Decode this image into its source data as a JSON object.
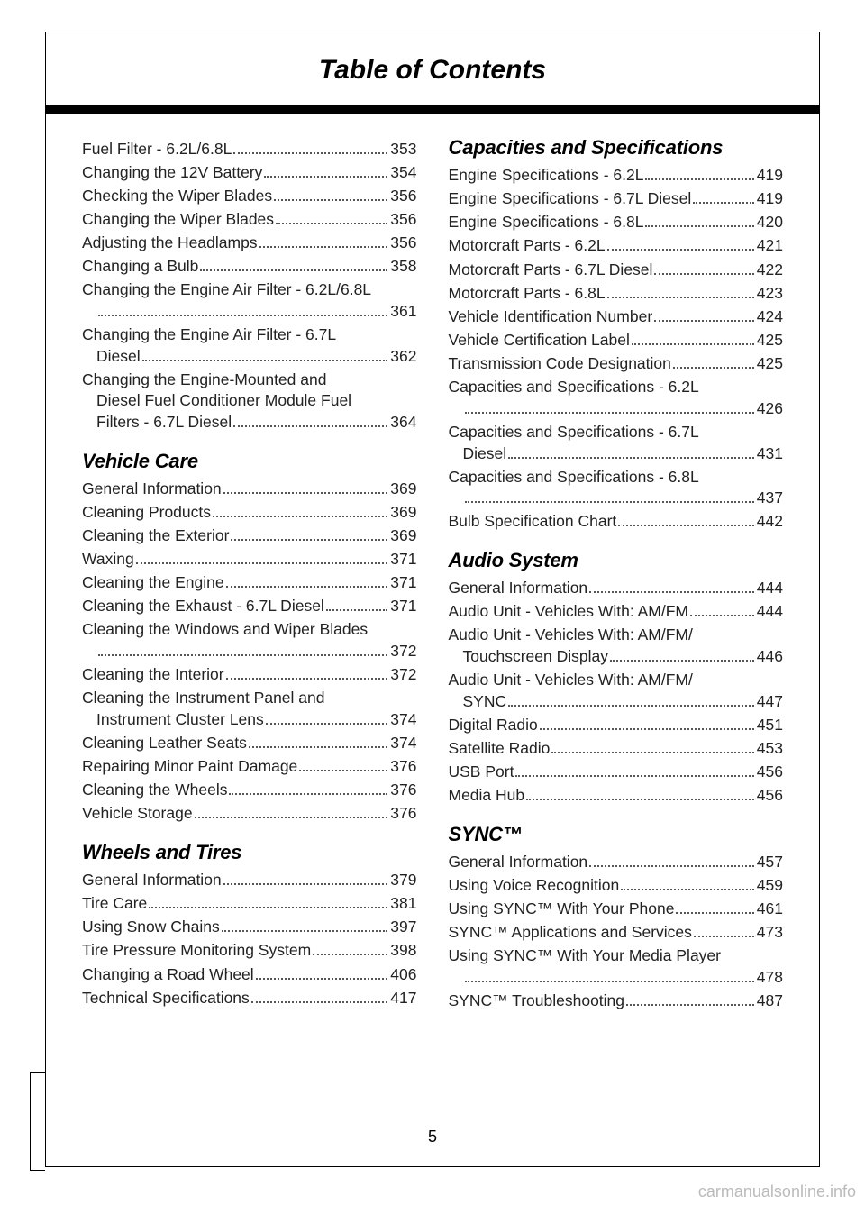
{
  "header": {
    "title": "Table of Contents"
  },
  "pageNumber": "5",
  "watermark": "carmanualsonline.info",
  "left": {
    "lead": [
      {
        "label": "Fuel Filter - 6.2L/6.8L",
        "page": "353"
      },
      {
        "label": "Changing the 12V Battery",
        "page": "354"
      },
      {
        "label": "Checking the Wiper Blades",
        "page": "356"
      },
      {
        "label": "Changing the Wiper Blades",
        "page": "356"
      },
      {
        "label": "Adjusting the Headlamps",
        "page": "356"
      },
      {
        "label": "Changing a Bulb",
        "page": "358"
      },
      {
        "label1": "Changing the Engine Air Filter - 6.2L/6.8L",
        "page": "361",
        "wrap": true
      },
      {
        "label1": "Changing the Engine Air Filter - 6.7L",
        "label2": "Diesel",
        "page": "362",
        "wrap": true
      },
      {
        "label1": "Changing the Engine-Mounted and",
        "label2": "Diesel Fuel Conditioner Module Fuel",
        "label3": "Filters - 6.7L Diesel",
        "page": "364",
        "wrap": true
      }
    ],
    "sections": [
      {
        "heading": "Vehicle Care",
        "items": [
          {
            "label": "General Information",
            "page": "369"
          },
          {
            "label": "Cleaning Products",
            "page": "369"
          },
          {
            "label": "Cleaning the Exterior",
            "page": "369"
          },
          {
            "label": "Waxing",
            "page": "371"
          },
          {
            "label": "Cleaning the Engine",
            "page": "371"
          },
          {
            "label": "Cleaning the Exhaust - 6.7L Diesel",
            "page": "371"
          },
          {
            "label1": "Cleaning the Windows and Wiper Blades",
            "page": "372",
            "wrap": true
          },
          {
            "label": "Cleaning the Interior",
            "page": "372"
          },
          {
            "label1": "Cleaning the Instrument Panel and",
            "label2": "Instrument Cluster Lens",
            "page": "374",
            "wrap": true
          },
          {
            "label": "Cleaning Leather Seats",
            "page": "374"
          },
          {
            "label": "Repairing Minor Paint Damage",
            "page": "376"
          },
          {
            "label": "Cleaning the Wheels",
            "page": "376"
          },
          {
            "label": "Vehicle Storage",
            "page": "376"
          }
        ]
      },
      {
        "heading": "Wheels and Tires",
        "items": [
          {
            "label": "General Information",
            "page": "379"
          },
          {
            "label": "Tire Care",
            "page": "381"
          },
          {
            "label": "Using Snow Chains",
            "page": "397"
          },
          {
            "label": "Tire Pressure Monitoring System",
            "page": "398"
          },
          {
            "label": "Changing a Road Wheel",
            "page": "406"
          },
          {
            "label": "Technical Specifications",
            "page": "417"
          }
        ]
      }
    ]
  },
  "right": {
    "sections": [
      {
        "heading": "Capacities and Specifications",
        "first": true,
        "items": [
          {
            "label": "Engine Specifications - 6.2L",
            "page": "419"
          },
          {
            "label": "Engine Specifications - 6.7L Diesel",
            "page": "419"
          },
          {
            "label": "Engine Specifications - 6.8L",
            "page": "420"
          },
          {
            "label": "Motorcraft Parts - 6.2L",
            "page": "421"
          },
          {
            "label": "Motorcraft Parts - 6.7L Diesel",
            "page": "422"
          },
          {
            "label": "Motorcraft Parts - 6.8L",
            "page": "423"
          },
          {
            "label": "Vehicle Identification Number",
            "page": "424"
          },
          {
            "label": "Vehicle Certification Label",
            "page": "425"
          },
          {
            "label": "Transmission Code Designation",
            "page": "425"
          },
          {
            "label1": "Capacities and Specifications - 6.2L",
            "page": "426",
            "wrap": true
          },
          {
            "label1": "Capacities and Specifications - 6.7L",
            "label2": "Diesel",
            "page": "431",
            "wrap": true
          },
          {
            "label1": "Capacities and Specifications - 6.8L",
            "page": "437",
            "wrap": true
          },
          {
            "label": "Bulb Specification Chart",
            "page": "442"
          }
        ]
      },
      {
        "heading": "Audio System",
        "items": [
          {
            "label": "General Information",
            "page": "444"
          },
          {
            "label": "Audio Unit - Vehicles With: AM/FM",
            "page": "444"
          },
          {
            "label1": "Audio Unit - Vehicles With: AM/FM/",
            "label2": "Touchscreen Display",
            "page": "446",
            "wrap": true
          },
          {
            "label1": "Audio Unit - Vehicles With: AM/FM/",
            "label2": "SYNC",
            "page": "447",
            "wrap": true
          },
          {
            "label": "Digital Radio",
            "page": "451"
          },
          {
            "label": "Satellite Radio",
            "page": "453"
          },
          {
            "label": "USB Port",
            "page": "456"
          },
          {
            "label": "Media Hub",
            "page": "456"
          }
        ]
      },
      {
        "heading": "SYNC™",
        "items": [
          {
            "label": "General Information",
            "page": "457"
          },
          {
            "label": "Using Voice Recognition",
            "page": "459"
          },
          {
            "label": "Using SYNC™ With Your Phone",
            "page": "461"
          },
          {
            "label": "SYNC™ Applications and Services",
            "page": "473"
          },
          {
            "label1": "Using SYNC™ With Your Media Player",
            "page": "478",
            "wrap": true
          },
          {
            "label": "SYNC™ Troubleshooting",
            "page": "487"
          }
        ]
      }
    ]
  }
}
